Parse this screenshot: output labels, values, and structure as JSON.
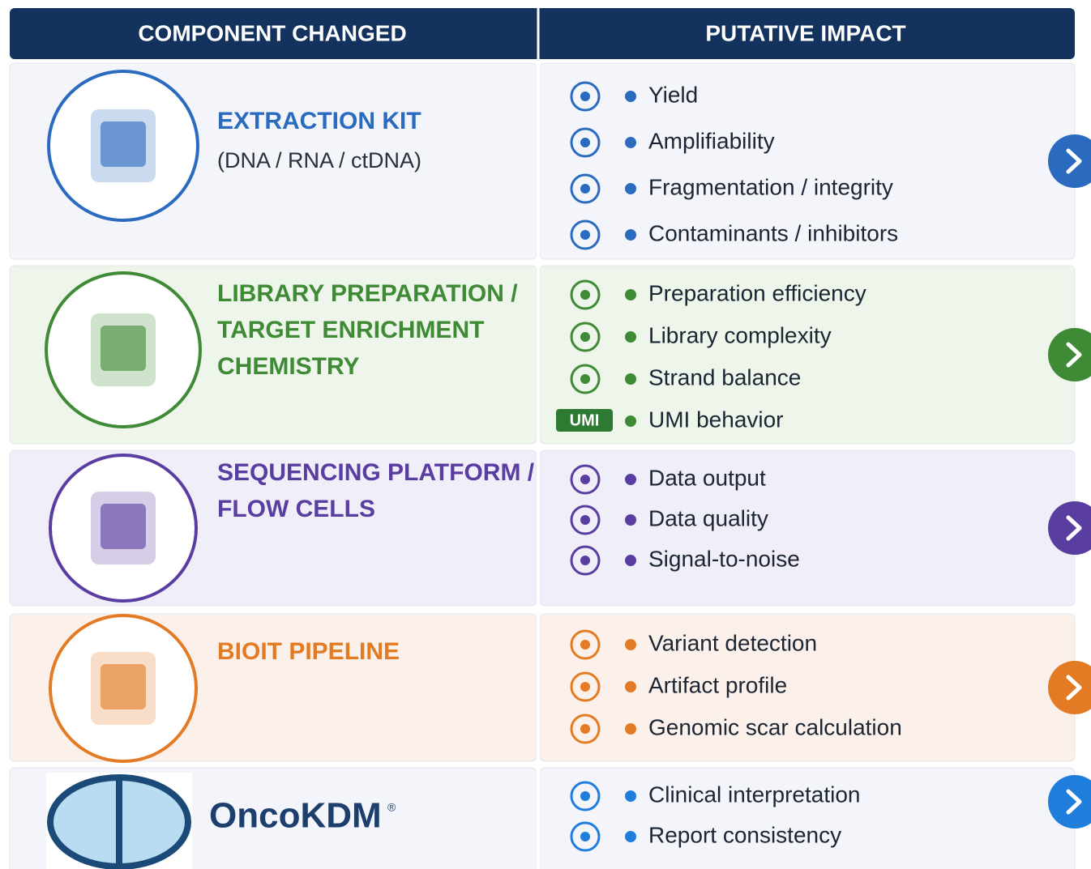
{
  "header": {
    "columns": [
      "COMPONENT CHANGED",
      "PUTATIVE IMPACT"
    ]
  },
  "rows": [
    {
      "title_lines": [
        "EXTRACTION KIT"
      ],
      "subtitle": "(DNA / RNA / ctDNA)",
      "color": "#2a6bc0",
      "impacts": [
        "Yield",
        "Amplifiability",
        "Fragmentation / integrity",
        "Contaminants / inhibitors"
      ]
    },
    {
      "title_lines": [
        "LIBRARY PREPARATION /",
        "TARGET ENRICHMENT",
        "CHEMISTRY"
      ],
      "color": "#3f8a35",
      "impacts": [
        "Preparation efficiency",
        "Library complexity",
        "Strand balance",
        "UMI behavior"
      ],
      "icon_label": "UMI"
    },
    {
      "title_lines": [
        "SEQUENCING PLATFORM /",
        "FLOW CELLS"
      ],
      "color": "#5a3da0",
      "impacts": [
        "Data output",
        "Data quality",
        "Signal-to-noise"
      ]
    },
    {
      "title_lines": [
        "BIOIT PIPELINE"
      ],
      "color": "#e37b25",
      "impacts": [
        "Variant detection",
        "Artifact profile",
        "Genomic scar calculation"
      ]
    },
    {
      "title_lines": [
        "OncoKDM"
      ],
      "title_mark": "®",
      "color": "#1f7ddc",
      "impacts": [
        "Clinical interpretation",
        "Report consistency"
      ]
    }
  ]
}
